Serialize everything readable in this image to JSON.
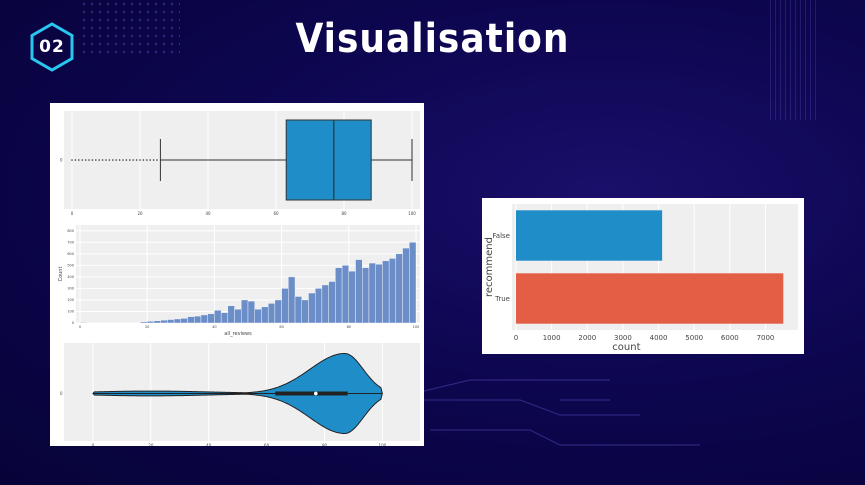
{
  "slide": {
    "badge": "02",
    "title": "Visualisation"
  },
  "colors": {
    "blue": "#1f8dc8",
    "hist_blue": "#6c8ec8",
    "orange": "#e45e45"
  },
  "chart_data": [
    {
      "type": "box",
      "orientation": "horizontal",
      "category_label": "0",
      "xlim": [
        0,
        100
      ],
      "xticks": [
        0,
        20,
        40,
        60,
        80,
        100
      ],
      "whisker_low": 26,
      "q1": 63,
      "median": 77,
      "q3": 88,
      "whisker_high": 100,
      "outliers": [
        0,
        1,
        2,
        3,
        4,
        5,
        6,
        7,
        8,
        9,
        10,
        11,
        12,
        13,
        14,
        15,
        16,
        17,
        18,
        19,
        20,
        21,
        22,
        23,
        24,
        25
      ]
    },
    {
      "type": "bar",
      "subtype": "histogram",
      "xlabel": "all_reviews",
      "ylabel": "Count",
      "xlim": [
        0,
        100
      ],
      "ylim": [
        0,
        850
      ],
      "xticks": [
        0,
        20,
        40,
        60,
        80,
        100
      ],
      "yticks": [
        0,
        100,
        200,
        300,
        400,
        500,
        600,
        700,
        800
      ],
      "bin_width": 2,
      "bin_starts": [
        0,
        2,
        4,
        6,
        8,
        10,
        12,
        14,
        16,
        18,
        20,
        22,
        24,
        26,
        28,
        30,
        32,
        34,
        36,
        38,
        40,
        42,
        44,
        46,
        48,
        50,
        52,
        54,
        56,
        58,
        60,
        62,
        64,
        66,
        68,
        70,
        72,
        74,
        76,
        78,
        80,
        82,
        84,
        86,
        88,
        90,
        92,
        94,
        96,
        98
      ],
      "values": [
        5,
        0,
        0,
        0,
        0,
        0,
        0,
        0,
        0,
        10,
        15,
        20,
        25,
        30,
        35,
        40,
        55,
        60,
        70,
        80,
        110,
        90,
        150,
        120,
        200,
        190,
        120,
        140,
        170,
        200,
        300,
        400,
        230,
        200,
        260,
        300,
        330,
        360,
        480,
        500,
        450,
        550,
        480,
        520,
        510,
        540,
        560,
        600,
        650,
        700
      ]
    },
    {
      "type": "violin",
      "orientation": "horizontal",
      "category_label": "0",
      "xlim": [
        -10,
        113
      ],
      "xticks": [
        0,
        20,
        40,
        60,
        80,
        100
      ],
      "median": 77,
      "q1": 63,
      "q3": 88,
      "min": 0,
      "max": 100
    },
    {
      "type": "bar",
      "orientation": "horizontal",
      "categories": [
        "False",
        "True"
      ],
      "values": [
        4100,
        7500
      ],
      "xlabel": "count",
      "ylabel": "recommend",
      "xlim": [
        0,
        7800
      ],
      "xticks": [
        0,
        1000,
        2000,
        3000,
        4000,
        5000,
        6000,
        7000
      ]
    }
  ]
}
